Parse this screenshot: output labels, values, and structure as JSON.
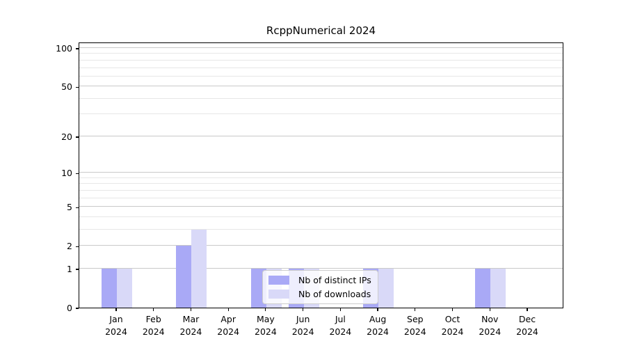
{
  "title": "RcppNumerical 2024",
  "chart_data": {
    "type": "bar",
    "title": "RcppNumerical 2024",
    "categories": [
      "Jan 2024",
      "Feb 2024",
      "Mar 2024",
      "Apr 2024",
      "May 2024",
      "Jun 2024",
      "Jul 2024",
      "Aug 2024",
      "Sep 2024",
      "Oct 2024",
      "Nov 2024",
      "Dec 2024"
    ],
    "x_months": [
      "Jan",
      "Feb",
      "Mar",
      "Apr",
      "May",
      "Jun",
      "Jul",
      "Aug",
      "Sep",
      "Oct",
      "Nov",
      "Dec"
    ],
    "x_year": "2024",
    "series": [
      {
        "name": "Nb of distinct IPs",
        "color": "#a9a9f6",
        "values": [
          1,
          0,
          2,
          0,
          1,
          1,
          0,
          1,
          0,
          0,
          1,
          0
        ]
      },
      {
        "name": "Nb of downloads",
        "color": "#d9d9f8",
        "values": [
          1,
          0,
          3,
          0,
          1,
          1,
          0,
          1,
          0,
          0,
          1,
          0
        ]
      }
    ],
    "yscale": "log1p",
    "ylim": [
      0,
      112
    ],
    "yticks_major": [
      0,
      1,
      2,
      5,
      10,
      20,
      50,
      100
    ],
    "yticks_minor": [
      3,
      4,
      6,
      7,
      8,
      9,
      30,
      40,
      60,
      70,
      80,
      90
    ],
    "grid": "horizontal",
    "legend": {
      "position": "inside-lower-center",
      "entries": [
        "Nb of distinct IPs",
        "Nb of downloads"
      ]
    },
    "colors": {
      "bar_distinct_ips": "#a9a9f6",
      "bar_downloads": "#d9d9f8",
      "grid_major": "#c9c9c9",
      "grid_minor": "#e7e7e7",
      "axis": "#000000"
    }
  }
}
